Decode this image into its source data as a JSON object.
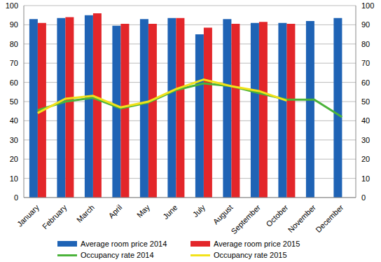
{
  "chart_data": {
    "type": "bar",
    "categories": [
      "January",
      "February",
      "March",
      "April",
      "May",
      "June",
      "July",
      "August",
      "September",
      "October",
      "November",
      "December"
    ],
    "series": [
      {
        "name": "Average room price 2014",
        "type": "bar",
        "color": "#1f63b5",
        "values": [
          93,
          93.5,
          95,
          89.5,
          93,
          93.5,
          85,
          93,
          91,
          91,
          92,
          93.5
        ]
      },
      {
        "name": "Average room price 2015",
        "type": "bar",
        "color": "#e3262a",
        "values": [
          91,
          94,
          96,
          90.5,
          90.5,
          93.5,
          88.5,
          90.5,
          91.5,
          90.5,
          null,
          null
        ]
      },
      {
        "name": "Occupancy rate 2014",
        "type": "line",
        "axis": "y2",
        "color": "#4bb33a",
        "values": [
          45.5,
          50,
          52,
          46.5,
          49.5,
          56,
          59.5,
          58,
          54.5,
          51,
          51,
          42
        ]
      },
      {
        "name": "Occupancy rate 2015",
        "type": "line",
        "axis": "y2",
        "color": "#f2e21a",
        "values": [
          44,
          51.5,
          53,
          47,
          50,
          56.5,
          61.5,
          58,
          55.5,
          50.5,
          null,
          null
        ]
      }
    ],
    "ylim": [
      0,
      100
    ],
    "yticks": [
      0,
      10,
      20,
      30,
      40,
      50,
      60,
      70,
      80,
      90,
      100
    ],
    "y2lim": [
      0,
      100
    ],
    "y2ticks": [
      0,
      10,
      20,
      30,
      40,
      50,
      60,
      70,
      80,
      90,
      100
    ],
    "grid": true,
    "legend": "bottom"
  }
}
